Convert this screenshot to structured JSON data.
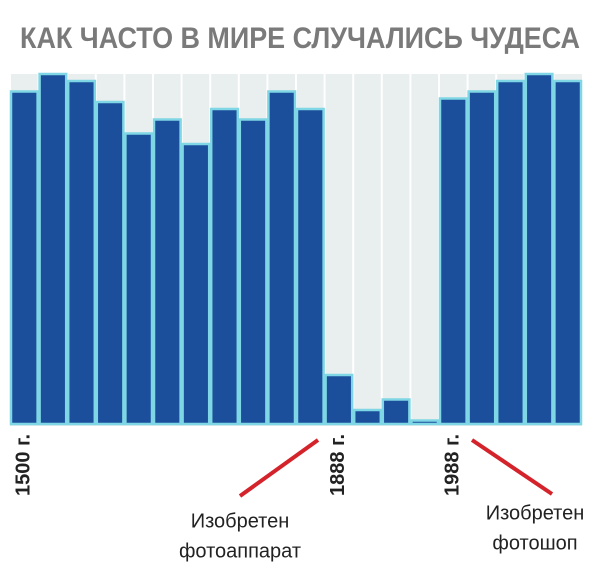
{
  "chart_data": {
    "type": "bar",
    "title": "КАК ЧАСТО В МИРЕ СЛУЧАЛИСЬ  ЧУДЕСА",
    "categories": [
      "1500 г.",
      null,
      null,
      null,
      null,
      null,
      null,
      null,
      null,
      null,
      null,
      "1888 г.",
      null,
      null,
      null,
      "1988 г.",
      null,
      null,
      null,
      null
    ],
    "values": [
      95,
      100,
      98,
      92,
      83,
      87,
      80,
      90,
      87,
      95,
      90,
      14,
      4,
      7,
      1,
      93,
      95,
      98,
      100,
      98
    ],
    "color": "#1b4f9c",
    "ylim": [
      0,
      100
    ],
    "annotations": [
      {
        "lines": [
          "Изобретен",
          "фотоаппарат"
        ],
        "color": "#d4232a"
      },
      {
        "lines": [
          "Изобретен",
          "фотошоп"
        ],
        "color": "#d4232a"
      }
    ]
  }
}
